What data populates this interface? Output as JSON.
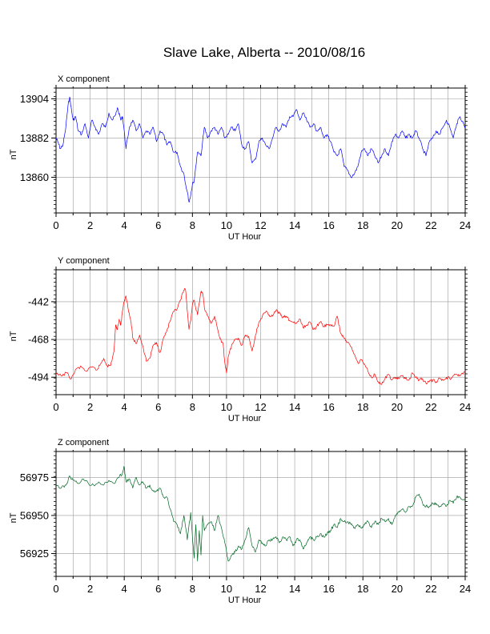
{
  "title": "Slave Lake, Alberta -- 2010/08/16",
  "chart_data": [
    {
      "type": "line",
      "title": "X component",
      "xlabel": "UT Hour",
      "ylabel": "nT",
      "xlim": [
        0,
        24
      ],
      "ylim": [
        13840,
        13910
      ],
      "xticks": [
        0,
        2,
        4,
        6,
        8,
        10,
        12,
        14,
        16,
        18,
        20,
        22,
        24
      ],
      "yticks": [
        13860,
        13882,
        13904
      ],
      "grid": true,
      "color": "#0000ff",
      "series": [
        {
          "x": [
            0,
            0.1,
            0.25,
            0.4,
            0.55,
            0.7,
            0.8,
            0.9,
            1.0,
            1.15,
            1.3,
            1.5,
            1.7,
            1.9,
            2.1,
            2.3,
            2.5,
            2.7,
            2.9,
            3.1,
            3.3,
            3.5,
            3.6,
            3.8,
            3.9,
            4.0,
            4.1,
            4.3,
            4.5,
            4.7,
            4.9,
            5.1,
            5.3,
            5.5,
            5.7,
            5.9,
            6.1,
            6.3,
            6.5,
            6.7,
            6.9,
            7.1,
            7.3,
            7.5,
            7.6,
            7.7,
            7.8,
            7.9,
            8.0,
            8.1,
            8.3,
            8.5,
            8.7,
            8.9,
            9.1,
            9.3,
            9.5,
            9.7,
            9.9,
            10.1,
            10.3,
            10.5,
            10.7,
            10.9,
            11.1,
            11.3,
            11.5,
            11.7,
            11.9,
            12.1,
            12.3,
            12.5,
            12.7,
            12.9,
            13.1,
            13.3,
            13.5,
            13.7,
            13.9,
            14.1,
            14.3,
            14.5,
            14.7,
            14.9,
            15.1,
            15.3,
            15.5,
            15.7,
            15.9,
            16.1,
            16.3,
            16.5,
            16.7,
            16.9,
            17.1,
            17.3,
            17.5,
            17.7,
            17.9,
            18.1,
            18.3,
            18.5,
            18.7,
            18.9,
            19.1,
            19.3,
            19.5,
            19.7,
            19.9,
            20.1,
            20.3,
            20.5,
            20.7,
            20.9,
            21.1,
            21.3,
            21.5,
            21.7,
            21.9,
            22.1,
            22.3,
            22.5,
            22.7,
            22.9,
            23.1,
            23.3,
            23.5,
            23.7,
            23.9,
            24.0
          ],
          "y": [
            13882,
            13880,
            13876,
            13878,
            13886,
            13900,
            13905,
            13898,
            13892,
            13894,
            13886,
            13884,
            13890,
            13882,
            13892,
            13888,
            13884,
            13890,
            13888,
            13896,
            13892,
            13895,
            13899,
            13892,
            13894,
            13886,
            13876,
            13888,
            13892,
            13886,
            13890,
            13882,
            13886,
            13884,
            13888,
            13880,
            13886,
            13884,
            13878,
            13880,
            13874,
            13874,
            13866,
            13862,
            13856,
            13852,
            13846,
            13850,
            13856,
            13858,
            13874,
            13872,
            13888,
            13882,
            13886,
            13888,
            13884,
            13888,
            13882,
            13884,
            13888,
            13886,
            13890,
            13878,
            13876,
            13880,
            13868,
            13870,
            13880,
            13882,
            13878,
            13876,
            13882,
            13888,
            13886,
            13890,
            13888,
            13894,
            13894,
            13898,
            13892,
            13896,
            13892,
            13888,
            13890,
            13886,
            13888,
            13882,
            13884,
            13880,
            13874,
            13872,
            13876,
            13866,
            13864,
            13860,
            13862,
            13866,
            13874,
            13876,
            13872,
            13876,
            13872,
            13868,
            13872,
            13876,
            13872,
            13880,
            13884,
            13882,
            13886,
            13882,
            13884,
            13882,
            13886,
            13882,
            13876,
            13872,
            13880,
            13882,
            13886,
            13884,
            13888,
            13892,
            13888,
            13882,
            13890,
            13894,
            13890,
            13888
          ]
        }
      ]
    },
    {
      "type": "line",
      "title": "Y component",
      "xlabel": "UT Hour",
      "ylabel": "nT",
      "xlim": [
        0,
        24
      ],
      "ylim": [
        -506,
        -420
      ],
      "xticks": [
        0,
        2,
        4,
        6,
        8,
        10,
        12,
        14,
        16,
        18,
        20,
        22,
        24
      ],
      "yticks": [
        -442,
        -468,
        -494
      ],
      "grid": true,
      "color": "#ff0000",
      "series": [
        {
          "x": [
            0,
            0.3,
            0.6,
            0.9,
            1.2,
            1.5,
            1.8,
            2.1,
            2.4,
            2.6,
            2.8,
            3.0,
            3.2,
            3.4,
            3.5,
            3.6,
            3.7,
            3.8,
            3.9,
            4.0,
            4.1,
            4.2,
            4.3,
            4.4,
            4.5,
            4.7,
            4.9,
            5.1,
            5.3,
            5.5,
            5.7,
            5.9,
            6.1,
            6.3,
            6.5,
            6.7,
            6.9,
            7.1,
            7.3,
            7.5,
            7.6,
            7.7,
            7.8,
            7.9,
            8.0,
            8.1,
            8.3,
            8.5,
            8.6,
            8.7,
            8.9,
            9.1,
            9.3,
            9.5,
            9.7,
            9.8,
            9.9,
            10.0,
            10.1,
            10.3,
            10.5,
            10.7,
            10.9,
            11.1,
            11.3,
            11.5,
            11.7,
            11.9,
            12.1,
            12.3,
            12.5,
            12.7,
            12.9,
            13.1,
            13.3,
            13.5,
            13.7,
            13.9,
            14.1,
            14.3,
            14.5,
            14.7,
            14.9,
            15.1,
            15.3,
            15.5,
            15.7,
            15.9,
            16.1,
            16.3,
            16.5,
            16.7,
            16.9,
            17.1,
            17.3,
            17.5,
            17.7,
            17.9,
            18.1,
            18.3,
            18.5,
            18.7,
            18.9,
            19.1,
            19.3,
            19.5,
            19.7,
            19.9,
            20.1,
            20.3,
            20.5,
            20.7,
            20.9,
            21.1,
            21.3,
            21.5,
            21.7,
            21.9,
            22.1,
            22.3,
            22.5,
            22.7,
            22.9,
            23.1,
            23.3,
            23.5,
            23.7,
            24.0
          ],
          "y": [
            -492,
            -493,
            -491,
            -495,
            -488,
            -487,
            -490,
            -487,
            -489,
            -485,
            -481,
            -486,
            -486,
            -476,
            -458,
            -461,
            -454,
            -458,
            -448,
            -442,
            -438,
            -444,
            -451,
            -456,
            -467,
            -471,
            -465,
            -473,
            -483,
            -481,
            -472,
            -470,
            -477,
            -467,
            -462,
            -455,
            -449,
            -447,
            -441,
            -434,
            -434,
            -448,
            -461,
            -455,
            -444,
            -441,
            -451,
            -435,
            -436,
            -446,
            -452,
            -457,
            -452,
            -462,
            -470,
            -471,
            -484,
            -491,
            -480,
            -472,
            -468,
            -467,
            -472,
            -465,
            -466,
            -476,
            -465,
            -456,
            -452,
            -449,
            -451,
            -452,
            -448,
            -450,
            -453,
            -452,
            -455,
            -456,
            -457,
            -454,
            -460,
            -458,
            -456,
            -461,
            -459,
            -456,
            -459,
            -458,
            -458,
            -459,
            -452,
            -464,
            -467,
            -470,
            -473,
            -478,
            -484,
            -482,
            -485,
            -490,
            -494,
            -492,
            -497,
            -499,
            -495,
            -492,
            -496,
            -494,
            -495,
            -493,
            -495,
            -496,
            -491,
            -494,
            -496,
            -495,
            -498,
            -497,
            -496,
            -497,
            -495,
            -496,
            -494,
            -495,
            -493,
            -492,
            -493,
            -490
          ]
        }
      ]
    },
    {
      "type": "line",
      "title": "Z component",
      "xlabel": "UT Hour",
      "ylabel": "nT",
      "xlim": [
        0,
        24
      ],
      "ylim": [
        56910,
        56992
      ],
      "xticks": [
        0,
        2,
        4,
        6,
        8,
        10,
        12,
        14,
        16,
        18,
        20,
        22,
        24
      ],
      "yticks": [
        56925,
        56950,
        56975
      ],
      "grid": true,
      "color": "#006622",
      "series": [
        {
          "x": [
            0,
            0.3,
            0.6,
            0.8,
            1.0,
            1.3,
            1.6,
            1.9,
            2.2,
            2.5,
            2.8,
            3.1,
            3.4,
            3.7,
            3.9,
            4.0,
            4.1,
            4.3,
            4.5,
            4.7,
            4.9,
            5.1,
            5.3,
            5.5,
            5.7,
            5.9,
            6.1,
            6.3,
            6.5,
            6.7,
            6.9,
            7.1,
            7.3,
            7.5,
            7.7,
            7.9,
            8.0,
            8.1,
            8.2,
            8.3,
            8.4,
            8.5,
            8.6,
            8.7,
            8.9,
            9.1,
            9.3,
            9.5,
            9.7,
            9.9,
            10.0,
            10.1,
            10.3,
            10.5,
            10.7,
            10.9,
            11.1,
            11.3,
            11.5,
            11.7,
            11.9,
            12.1,
            12.3,
            12.5,
            12.7,
            12.9,
            13.1,
            13.3,
            13.5,
            13.7,
            13.9,
            14.1,
            14.3,
            14.5,
            14.7,
            14.9,
            15.1,
            15.3,
            15.5,
            15.7,
            15.9,
            16.1,
            16.3,
            16.5,
            16.7,
            16.9,
            17.1,
            17.3,
            17.5,
            17.7,
            17.9,
            18.1,
            18.3,
            18.5,
            18.7,
            18.9,
            19.1,
            19.3,
            19.5,
            19.7,
            19.9,
            20.1,
            20.3,
            20.5,
            20.7,
            20.9,
            21.1,
            21.3,
            21.5,
            21.7,
            21.9,
            22.1,
            22.3,
            22.5,
            22.7,
            22.9,
            23.1,
            23.3,
            23.5,
            23.7,
            24.0
          ],
          "y": [
            56970,
            56968,
            56970,
            56976,
            56973,
            56971,
            56974,
            56971,
            56970,
            56972,
            56970,
            56973,
            56971,
            56975,
            56978,
            56982,
            56972,
            56974,
            56968,
            56975,
            56970,
            56972,
            56968,
            56970,
            56966,
            56966,
            56968,
            56962,
            56962,
            56954,
            56946,
            56944,
            56938,
            56950,
            56934,
            56952,
            56936,
            56922,
            56944,
            56920,
            56940,
            56924,
            56950,
            56940,
            56944,
            56946,
            56940,
            56950,
            56942,
            56932,
            56926,
            56920,
            56924,
            56926,
            56930,
            56928,
            56934,
            56942,
            56930,
            56926,
            56934,
            56932,
            56930,
            56934,
            56934,
            56936,
            56932,
            56936,
            56934,
            56936,
            56930,
            56934,
            56934,
            56928,
            56932,
            56936,
            56934,
            56936,
            56938,
            56936,
            56938,
            56940,
            56944,
            56942,
            56948,
            56946,
            56946,
            56944,
            56942,
            56944,
            56942,
            56944,
            56946,
            56942,
            56946,
            56944,
            56948,
            56946,
            56948,
            56944,
            56950,
            56952,
            56954,
            56952,
            56956,
            56956,
            56962,
            56964,
            56958,
            56956,
            56956,
            56958,
            56958,
            56956,
            56958,
            56956,
            56960,
            56958,
            56962,
            56962,
            56960
          ]
        }
      ]
    }
  ]
}
